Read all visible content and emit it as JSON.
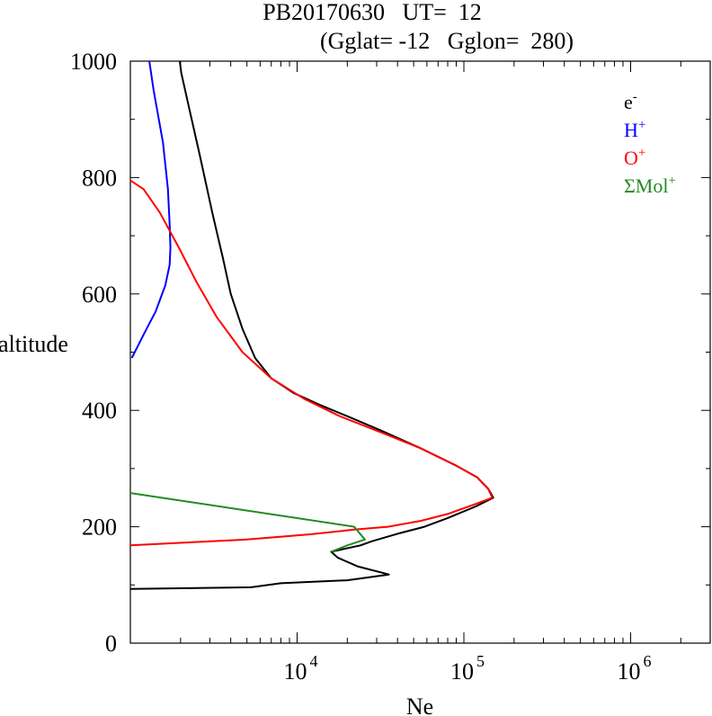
{
  "chart_data": {
    "type": "line",
    "title_line1": "PB20170630   UT=  12",
    "title_line2": "(Gglat= -12   Gglon=  280)",
    "xlabel": "Ne",
    "ylabel": "altitude",
    "x_scale": "log",
    "xlim": [
      1000,
      3000000
    ],
    "ylim": [
      0,
      1000
    ],
    "x_tick_labels": [
      {
        "base": "10",
        "exp": "4",
        "value": 10000
      },
      {
        "base": "10",
        "exp": "5",
        "value": 100000
      },
      {
        "base": "10",
        "exp": "6",
        "value": 1000000
      }
    ],
    "y_ticks": [
      0,
      200,
      400,
      600,
      800,
      1000
    ],
    "grid": false,
    "legend_position": "top-right",
    "series": [
      {
        "name": "e",
        "name_sup": "-",
        "color": "#000000",
        "points": [
          [
            1000,
            93
          ],
          [
            5300,
            96
          ],
          [
            8000,
            103
          ],
          [
            20000,
            108
          ],
          [
            35500,
            118
          ],
          [
            23000,
            132
          ],
          [
            17500,
            147
          ],
          [
            16000,
            157
          ],
          [
            24000,
            168
          ],
          [
            28000,
            175
          ],
          [
            40000,
            188
          ],
          [
            58000,
            200
          ],
          [
            80000,
            215
          ],
          [
            118000,
            235
          ],
          [
            150000,
            250
          ],
          [
            140000,
            265
          ],
          [
            120000,
            285
          ],
          [
            90000,
            305
          ],
          [
            55000,
            335
          ],
          [
            32000,
            365
          ],
          [
            20000,
            390
          ],
          [
            13500,
            410
          ],
          [
            9500,
            430
          ],
          [
            7000,
            455
          ],
          [
            5600,
            490
          ],
          [
            4700,
            540
          ],
          [
            4000,
            600
          ],
          [
            3600,
            660
          ],
          [
            3100,
            740
          ],
          [
            2600,
            840
          ],
          [
            2250,
            920
          ],
          [
            2020,
            980
          ],
          [
            1980,
            1000
          ]
        ]
      },
      {
        "name": "H",
        "name_sup": "+",
        "color": "#0000ff",
        "points": [
          [
            1020,
            490
          ],
          [
            1200,
            530
          ],
          [
            1420,
            570
          ],
          [
            1620,
            615
          ],
          [
            1720,
            650
          ],
          [
            1740,
            680
          ],
          [
            1720,
            720
          ],
          [
            1680,
            780
          ],
          [
            1570,
            860
          ],
          [
            1380,
            950
          ],
          [
            1300,
            1000
          ]
        ]
      },
      {
        "name": "O",
        "name_sup": "+",
        "color": "#ff0000",
        "points": [
          [
            1000,
            168
          ],
          [
            5000,
            178
          ],
          [
            12000,
            187
          ],
          [
            22000,
            195
          ],
          [
            35000,
            200
          ],
          [
            55000,
            210
          ],
          [
            80000,
            222
          ],
          [
            115000,
            238
          ],
          [
            148000,
            250
          ],
          [
            140000,
            265
          ],
          [
            120000,
            285
          ],
          [
            90000,
            305
          ],
          [
            55000,
            335
          ],
          [
            32000,
            362
          ],
          [
            18000,
            390
          ],
          [
            11000,
            420
          ],
          [
            7000,
            455
          ],
          [
            4700,
            500
          ],
          [
            3300,
            560
          ],
          [
            2500,
            620
          ],
          [
            1950,
            680
          ],
          [
            1500,
            740
          ],
          [
            1200,
            780
          ],
          [
            1000,
            795
          ]
        ]
      },
      {
        "name": "ΣMol",
        "name_sup": "+",
        "color": "#228b22",
        "points": [
          [
            1000,
            258
          ],
          [
            22000,
            200
          ],
          [
            25500,
            178
          ],
          [
            20000,
            168
          ],
          [
            16000,
            157
          ]
        ]
      }
    ]
  }
}
